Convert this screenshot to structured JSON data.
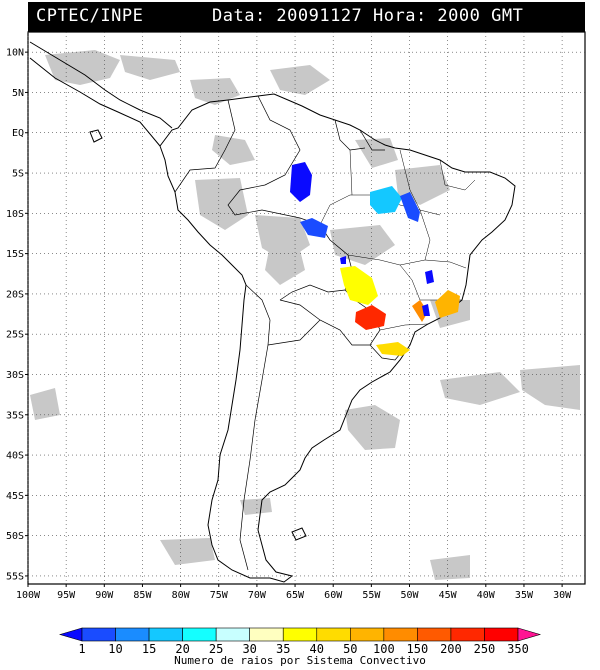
{
  "header": {
    "source": "CPTEC/INPE",
    "datetime": "Data: 20091127 Hora: 2000 GMT"
  },
  "map": {
    "lat_labels": [
      "10N",
      "5N",
      "EQ",
      "5S",
      "10S",
      "15S",
      "20S",
      "25S",
      "30S",
      "35S",
      "40S",
      "45S",
      "50S",
      "55S"
    ],
    "lat_values": [
      10,
      5,
      0,
      -5,
      -10,
      -15,
      -20,
      -25,
      -30,
      -35,
      -40,
      -45,
      -50,
      -55
    ],
    "lon_labels": [
      "100W",
      "95W",
      "90W",
      "85W",
      "80W",
      "75W",
      "70W",
      "65W",
      "60W",
      "55W",
      "50W",
      "45W",
      "40W",
      "35W",
      "30W"
    ],
    "lon_values": [
      -100,
      -95,
      -90,
      -85,
      -80,
      -75,
      -70,
      -65,
      -60,
      -55,
      -50,
      -45,
      -40,
      -35,
      -30
    ],
    "lon_range": [
      -100,
      -27
    ],
    "lat_range": [
      -56,
      12.5
    ],
    "gridlines": true
  },
  "colorbar": {
    "labels": [
      "1",
      "10",
      "15",
      "20",
      "25",
      "30",
      "35",
      "40",
      "50",
      "100",
      "150",
      "200",
      "250",
      "350"
    ],
    "colors": [
      "#0a0aff",
      "#1a4cff",
      "#1a8cff",
      "#14c8ff",
      "#14ffff",
      "#c8ffff",
      "#ffffc0",
      "#ffff00",
      "#ffdc00",
      "#ffb400",
      "#ff8c00",
      "#ff5a00",
      "#ff2800",
      "#ff0000",
      "#ff1493"
    ]
  },
  "caption": "Numero de raios por Sistema Convectivo",
  "colors": {
    "cloud": "#c8c8c8"
  }
}
